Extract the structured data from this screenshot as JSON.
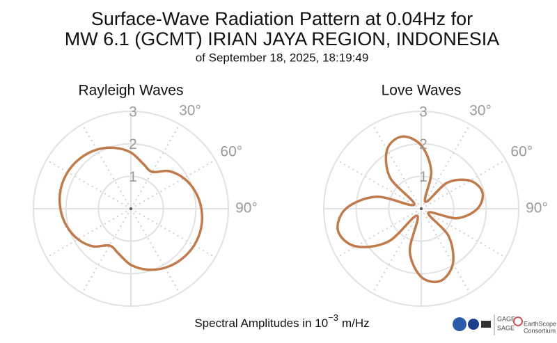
{
  "title": [
    "Surface-Wave Radiation Pattern at 0.04Hz for",
    "MW 6.1 (GCMT) IRIAN JAYA REGION, INDONESIA"
  ],
  "subtitle": "of September 18, 2025, 18:19:49",
  "footer": {
    "text": "Spectral Amplitudes in 10",
    "exponent": "−3",
    "unit": "m/Hz"
  },
  "logos": [
    "GAGE",
    "SAGE",
    "EarthScope",
    "Consortium"
  ],
  "chart_data": [
    {
      "type": "polar",
      "title": "Rayleigh Waves",
      "color": "#c07a4b",
      "theta": [
        0,
        15,
        30,
        45,
        60,
        75,
        90,
        105,
        120,
        135,
        150,
        165,
        180,
        195,
        210,
        225,
        240,
        255,
        270,
        285,
        300,
        315,
        330,
        345
      ],
      "r": [
        1.73,
        1.44,
        1.31,
        1.64,
        1.88,
        2.05,
        2.17,
        2.24,
        2.25,
        2.2,
        2.1,
        1.94,
        1.73,
        1.44,
        1.31,
        1.64,
        1.88,
        2.05,
        2.17,
        2.24,
        2.25,
        2.2,
        2.1,
        1.94
      ],
      "rlim": [
        0,
        3
      ],
      "rticks": [
        1,
        2,
        3
      ],
      "thetagrid": [
        0,
        30,
        60,
        90,
        120,
        150,
        180,
        210,
        240,
        270,
        300,
        330
      ],
      "thetaticks": [
        {
          "value": 30,
          "label": "30°"
        },
        {
          "value": 60,
          "label": "60°"
        },
        {
          "value": 90,
          "label": "90°"
        }
      ]
    },
    {
      "type": "polar",
      "title": "Love Waves",
      "color": "#c07a4b",
      "theta": [
        0,
        15,
        30,
        45,
        60,
        75,
        90,
        105,
        120,
        135,
        150,
        165,
        180,
        195,
        210,
        225,
        240,
        255,
        270,
        285,
        300,
        315,
        330,
        345
      ],
      "r": [
        1.95,
        1.19,
        0.25,
        1.13,
        1.73,
        1.95,
        1.73,
        1.13,
        0.25,
        1.19,
        1.95,
        2.3,
        2.1,
        1.36,
        0.25,
        1.43,
        2.32,
        2.65,
        2.32,
        1.43,
        0.25,
        1.36,
        2.1,
        2.3
      ],
      "rlim": [
        0,
        3
      ],
      "rticks": [
        1,
        2,
        3
      ],
      "thetagrid": [
        0,
        30,
        60,
        90,
        120,
        150,
        180,
        210,
        240,
        270,
        300,
        330
      ],
      "thetaticks": [
        {
          "value": 30,
          "label": "30°"
        },
        {
          "value": 60,
          "label": "60°"
        },
        {
          "value": 90,
          "label": "90°"
        }
      ]
    }
  ]
}
